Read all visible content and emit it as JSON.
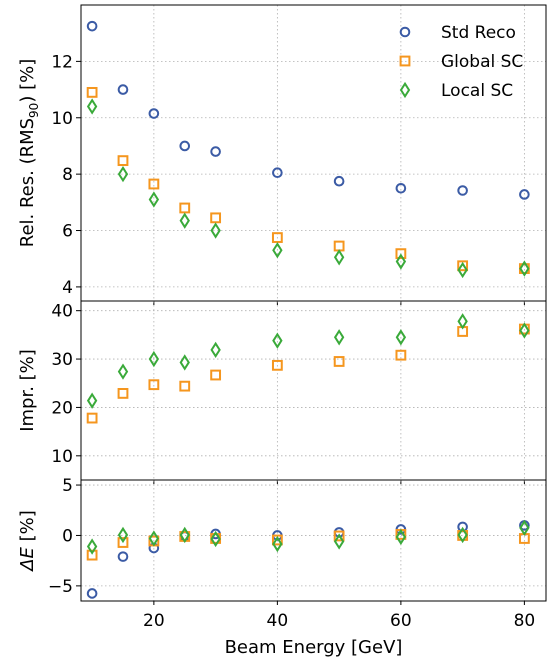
{
  "chart_data": {
    "type": "scatter",
    "x": [
      10,
      15,
      20,
      25,
      30,
      40,
      50,
      60,
      70,
      80
    ],
    "xlabel": "Beam Energy [GeV]",
    "xlim": [
      8.2,
      83.5
    ],
    "xticks": [
      20,
      40,
      60,
      80
    ],
    "legend_position": "top-right",
    "grid": true,
    "series_styles": [
      {
        "name": "Std Reco",
        "marker": "circle",
        "color": "#3b5ba5"
      },
      {
        "name": "Global SC",
        "marker": "square",
        "color": "#f5961e"
      },
      {
        "name": "Local SC",
        "marker": "diamond",
        "color": "#3aaa3a"
      }
    ],
    "panels": [
      {
        "id": "resolution",
        "ylabel_main": "Rel. Res. (RMS",
        "ylabel_sub": "90",
        "ylabel_end": ") [%]",
        "ylim": [
          3.5,
          14.0
        ],
        "yticks": [
          4,
          6,
          8,
          10,
          12
        ],
        "series": [
          {
            "name": "Std Reco",
            "values": [
              13.25,
              11.0,
              10.15,
              9.0,
              8.8,
              8.05,
              7.75,
              7.5,
              7.42,
              7.28
            ]
          },
          {
            "name": "Global SC",
            "values": [
              10.9,
              8.48,
              7.65,
              6.8,
              6.45,
              5.75,
              5.45,
              5.18,
              4.75,
              4.65
            ]
          },
          {
            "name": "Local SC",
            "values": [
              10.4,
              8.0,
              7.1,
              6.35,
              6.0,
              5.3,
              5.05,
              4.9,
              4.6,
              4.65
            ]
          }
        ]
      },
      {
        "id": "improvement",
        "ylabel_main": "Impr. [%]",
        "ylim": [
          5.0,
          42.0
        ],
        "yticks": [
          10,
          20,
          30,
          40
        ],
        "series": [
          {
            "name": "Global SC",
            "values": [
              17.8,
              22.9,
              24.7,
              24.4,
              26.7,
              28.7,
              29.5,
              30.8,
              35.7,
              36.2
            ]
          },
          {
            "name": "Local SC",
            "values": [
              21.4,
              27.4,
              30.0,
              29.3,
              31.9,
              33.8,
              34.5,
              34.5,
              37.8,
              35.9
            ]
          }
        ]
      },
      {
        "id": "delta-e",
        "ylabel_main": "ΔE",
        "ylabel_end": " [%]",
        "ylim": [
          -6.5,
          5.5
        ],
        "yticks": [
          -5,
          0,
          5
        ],
        "yticklabels": [
          "−5",
          "0",
          "5"
        ],
        "series": [
          {
            "name": "Std Reco",
            "values": [
              -5.75,
              -2.1,
              -1.25,
              -0.1,
              0.15,
              0.0,
              0.3,
              0.6,
              0.85,
              1.0
            ]
          },
          {
            "name": "Global SC",
            "values": [
              -1.95,
              -0.7,
              -0.55,
              -0.1,
              -0.3,
              -0.45,
              -0.05,
              0.1,
              0.0,
              -0.3
            ]
          },
          {
            "name": "Local SC",
            "values": [
              -1.1,
              0.05,
              -0.3,
              0.05,
              -0.35,
              -0.85,
              -0.6,
              -0.15,
              0.05,
              0.75
            ]
          }
        ]
      }
    ]
  }
}
